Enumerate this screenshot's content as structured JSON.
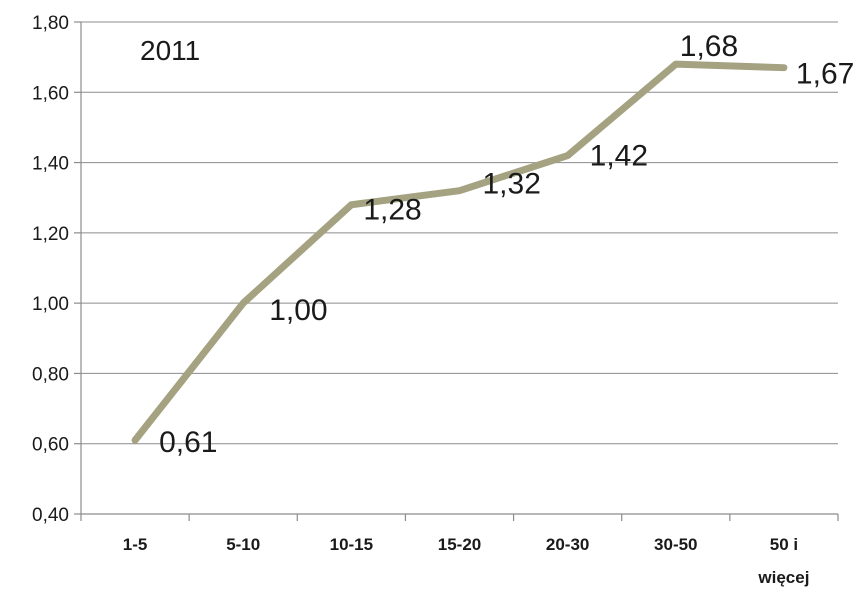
{
  "chart_data": {
    "type": "line",
    "title": "",
    "xlabel": "",
    "ylabel": "",
    "annotation": "2011",
    "categories": [
      "1-5",
      "5-10",
      "10-15",
      "15-20",
      "20-30",
      "30-50",
      "50 i więcej"
    ],
    "category_lines": [
      [
        "1-5"
      ],
      [
        "5-10"
      ],
      [
        "10-15"
      ],
      [
        "15-20"
      ],
      [
        "20-30"
      ],
      [
        "30-50"
      ],
      [
        "50 i",
        "więcej"
      ]
    ],
    "series": [
      {
        "values": [
          0.61,
          1.0,
          1.28,
          1.32,
          1.42,
          1.68,
          1.67
        ],
        "color": "#a4a280"
      }
    ],
    "data_labels": [
      "0,61",
      "1,00",
      "1,28",
      "1,32",
      "1,42",
      "1,68",
      "1,67"
    ],
    "ylim": [
      0.4,
      1.8
    ],
    "yticks": [
      0.4,
      0.6,
      0.8,
      1.0,
      1.2,
      1.4,
      1.6,
      1.8
    ],
    "ytick_labels": [
      "0,40",
      "0,60",
      "0,80",
      "1,00",
      "1,20",
      "1,40",
      "1,60",
      "1,80"
    ],
    "grid": true,
    "legend": "none"
  }
}
